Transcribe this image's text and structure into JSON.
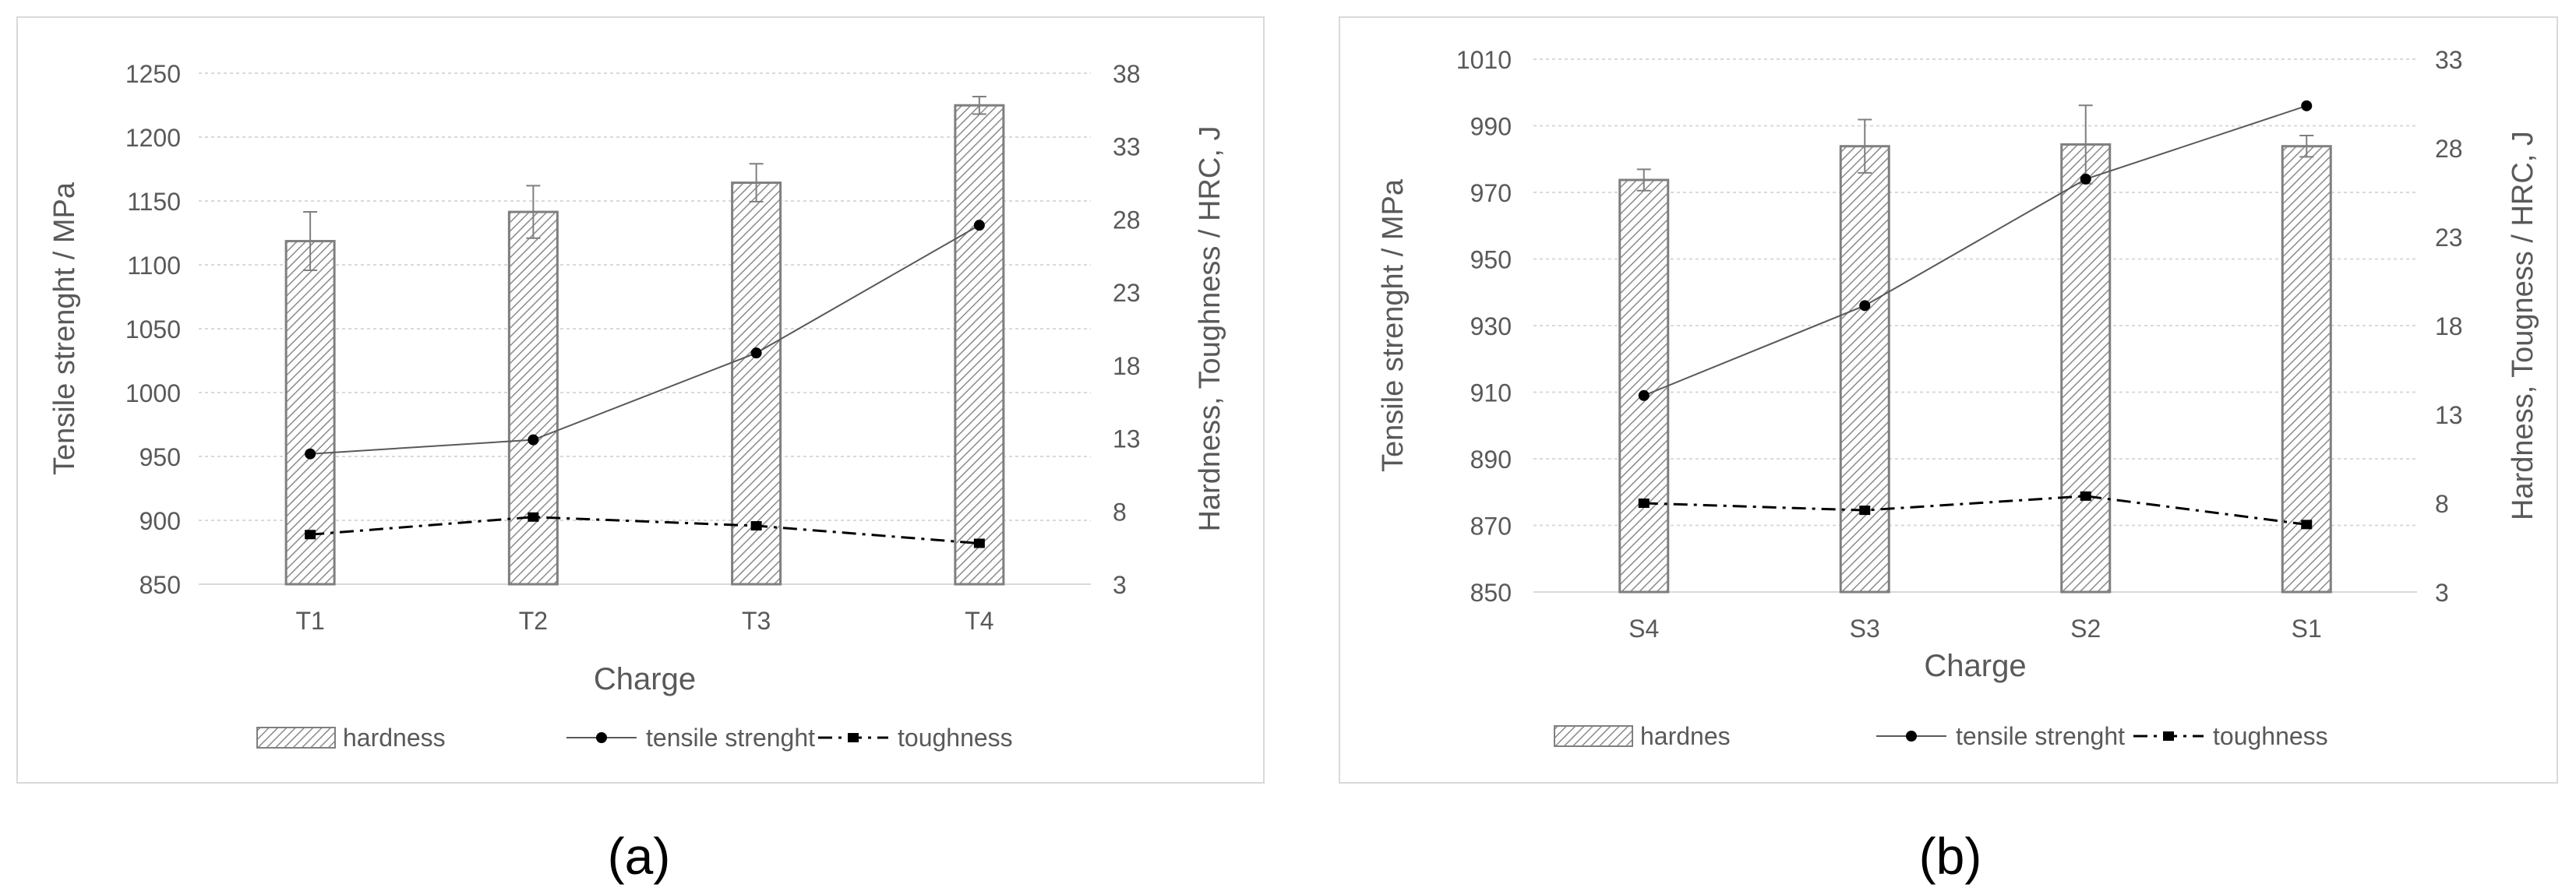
{
  "figure_label": {
    "a": "(a)",
    "b": "(b)"
  },
  "chart_data": [
    {
      "type": "bar+line",
      "id": "a",
      "xlabel": "Charge",
      "ylabel_left": "Tensile strenght / MPa",
      "ylabel_right": "Hardness, Toughness / HRC, J",
      "categories": [
        "T1",
        "T2",
        "T3",
        "T4"
      ],
      "ylim_left": [
        850,
        1250
      ],
      "yticks_left": [
        850,
        900,
        950,
        1000,
        1050,
        1100,
        1150,
        1200,
        1250
      ],
      "ylim_right": [
        3,
        38
      ],
      "yticks_right": [
        3,
        8,
        13,
        18,
        23,
        28,
        33,
        38
      ],
      "grid": true,
      "legend_position": "bottom",
      "series": [
        {
          "name": "hardness",
          "kind": "bar",
          "axis": "right",
          "values": [
            26.5,
            28.5,
            30.5,
            35.8
          ],
          "errors": [
            2.0,
            1.8,
            1.3,
            0.6
          ]
        },
        {
          "name": "tensile strenght",
          "kind": "line",
          "axis": "left",
          "values": [
            952,
            963,
            1031,
            1131
          ],
          "marker": "circle",
          "style": "solid"
        },
        {
          "name": "toughness",
          "kind": "line",
          "axis": "right",
          "values": [
            6.4,
            7.6,
            7.0,
            5.8
          ],
          "marker": "x",
          "style": "dashdot"
        }
      ]
    },
    {
      "type": "bar+line",
      "id": "b",
      "xlabel": "Charge",
      "ylabel_left": "Tensile strenght / MPa",
      "ylabel_right": "Hardness, Tougness / HRC, J",
      "categories": [
        "S4",
        "S3",
        "S2",
        "S1"
      ],
      "ylim_left": [
        850,
        1010
      ],
      "yticks_left": [
        850,
        870,
        890,
        910,
        930,
        950,
        970,
        990,
        1010
      ],
      "ylim_right": [
        3,
        33
      ],
      "yticks_right": [
        3,
        8,
        13,
        18,
        23,
        28,
        33
      ],
      "grid": true,
      "legend_position": "bottom",
      "series": [
        {
          "name": "hardnes",
          "kind": "bar",
          "axis": "right",
          "values": [
            26.2,
            28.1,
            28.2,
            28.1
          ],
          "errors": [
            0.6,
            1.5,
            2.2,
            0.6
          ]
        },
        {
          "name": "tensile strenght",
          "kind": "line",
          "axis": "left",
          "values": [
            909,
            936,
            974,
            996
          ],
          "marker": "circle",
          "style": "solid"
        },
        {
          "name": "toughness",
          "kind": "line",
          "axis": "right",
          "values": [
            8.0,
            7.6,
            8.4,
            6.8
          ],
          "marker": "square",
          "style": "dashdot"
        }
      ]
    }
  ]
}
